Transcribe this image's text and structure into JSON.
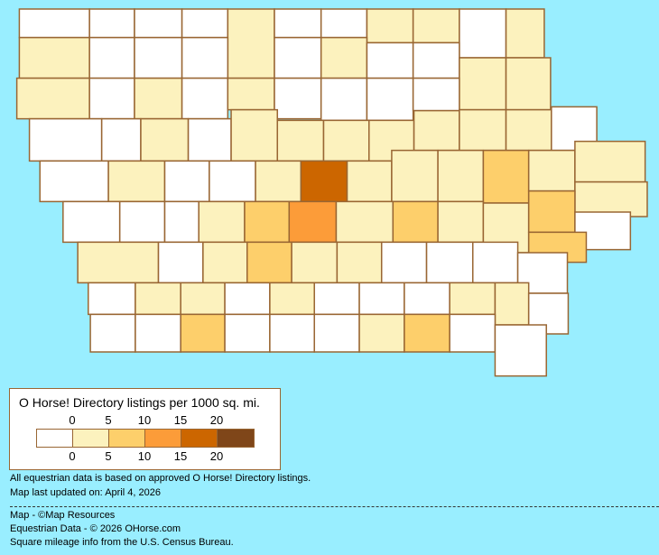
{
  "map": {
    "fill_colors": [
      "#FFFFFF",
      "#FCF2BE",
      "#FDCF6B",
      "#FC9C39",
      "#CC6600",
      "#7F4619"
    ],
    "border_color": "#996633",
    "water_color": "#99EEFF",
    "county_levels": [
      0,
      0,
      0,
      0,
      1,
      0,
      0,
      1,
      1,
      0,
      1,
      1,
      0,
      0,
      0,
      0,
      1,
      0,
      0,
      1,
      1,
      1,
      0,
      1,
      0,
      1,
      0,
      0,
      0,
      0,
      0,
      0,
      1,
      0,
      1,
      1,
      1,
      1,
      1,
      1,
      1,
      0,
      0,
      1,
      0,
      0,
      1,
      4,
      1,
      1,
      1,
      2,
      1,
      1,
      1,
      0,
      0,
      0,
      1,
      2,
      3,
      1,
      2,
      1,
      1,
      2,
      0,
      1,
      0,
      1,
      2,
      1,
      1,
      0,
      0,
      0,
      2,
      0,
      0,
      1,
      1,
      0,
      1,
      0,
      0,
      0,
      1,
      1,
      0,
      0,
      0,
      2,
      0,
      0,
      0,
      1,
      2,
      0,
      0
    ]
  },
  "legend": {
    "title": "O Horse! Directory listings per 1000 sq. mi.",
    "top_ticks": [
      "0",
      "5",
      "10",
      "15",
      "20"
    ],
    "bottom_ticks": [
      "0",
      "5",
      "10",
      "15",
      "20"
    ]
  },
  "notes": {
    "line1": "All equestrian data is based on approved O Horse! Directory listings.",
    "line2": "Map last updated on: April 4, 2026",
    "credit_map": "Map - ©Map Resources",
    "credit_data": "Equestrian Data - © 2026 OHorse.com",
    "credit_census": "Square mileage info from the U.S. Census Bureau."
  }
}
